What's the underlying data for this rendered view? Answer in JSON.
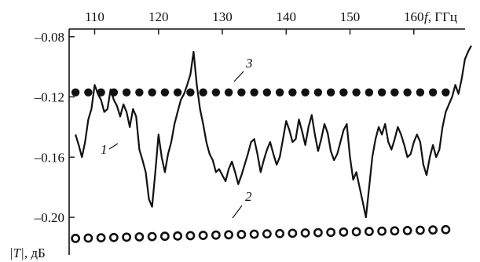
{
  "chart_data": {
    "type": "line",
    "x_axis": {
      "ticks": [
        110,
        120,
        130,
        140,
        150,
        160
      ],
      "tick_labels": [
        "110",
        "120",
        "130",
        "140",
        "150",
        "160"
      ],
      "label_var": "f",
      "label_unit": ", ГГц",
      "range": [
        106,
        170
      ],
      "position": "top"
    },
    "y_axis": {
      "ticks": [
        -0.08,
        -0.12,
        -0.16,
        -0.2
      ],
      "tick_labels": [
        "–0.08",
        "–0.12",
        "–0.16",
        "–0.20"
      ],
      "label_var": "|T|",
      "label_unit": ", дБ",
      "range": [
        -0.225,
        -0.065
      ]
    },
    "grid": false,
    "series": [
      {
        "label": "1",
        "style": "solid",
        "x": [
          107.0,
          107.5,
          108.0,
          108.5,
          109.0,
          109.5,
          110.0,
          110.5,
          111.0,
          111.5,
          112.0,
          112.5,
          113.0,
          113.5,
          114.0,
          114.5,
          115.0,
          115.5,
          116.0,
          116.5,
          117.0,
          117.5,
          118.0,
          118.5,
          119.0,
          119.5,
          120.0,
          120.5,
          121.0,
          121.5,
          122.0,
          122.5,
          123.0,
          123.5,
          124.0,
          124.5,
          125.0,
          125.5,
          126.0,
          126.5,
          127.0,
          127.5,
          128.0,
          128.5,
          129.0,
          129.5,
          130.0,
          130.5,
          131.0,
          131.5,
          132.0,
          132.5,
          133.0,
          133.5,
          134.0,
          134.5,
          135.0,
          135.5,
          136.0,
          136.5,
          137.0,
          137.5,
          138.0,
          138.5,
          139.0,
          139.5,
          140.0,
          140.5,
          141.0,
          141.5,
          142.0,
          142.5,
          143.0,
          143.5,
          144.0,
          144.5,
          145.0,
          145.5,
          146.0,
          146.5,
          147.0,
          147.5,
          148.0,
          148.5,
          149.0,
          149.5,
          150.0,
          150.5,
          151.0,
          151.5,
          152.0,
          152.5,
          153.0,
          153.5,
          154.0,
          154.5,
          155.0,
          155.5,
          156.0,
          156.5,
          157.0,
          157.5,
          158.0,
          158.5,
          159.0,
          159.5,
          160.0,
          160.5,
          161.0,
          161.5,
          162.0,
          162.5,
          163.0,
          163.5,
          164.0,
          164.5,
          165.0,
          165.5,
          166.0,
          166.5,
          167.0,
          167.5,
          168.0,
          168.5,
          169.0
        ],
        "y": [
          -0.145,
          -0.152,
          -0.16,
          -0.15,
          -0.135,
          -0.128,
          -0.112,
          -0.118,
          -0.122,
          -0.13,
          -0.128,
          -0.115,
          -0.122,
          -0.126,
          -0.133,
          -0.125,
          -0.13,
          -0.14,
          -0.128,
          -0.133,
          -0.155,
          -0.162,
          -0.17,
          -0.188,
          -0.193,
          -0.17,
          -0.145,
          -0.16,
          -0.17,
          -0.158,
          -0.15,
          -0.138,
          -0.13,
          -0.122,
          -0.118,
          -0.112,
          -0.105,
          -0.09,
          -0.112,
          -0.128,
          -0.138,
          -0.15,
          -0.158,
          -0.162,
          -0.17,
          -0.168,
          -0.172,
          -0.176,
          -0.168,
          -0.163,
          -0.17,
          -0.178,
          -0.172,
          -0.165,
          -0.158,
          -0.15,
          -0.148,
          -0.158,
          -0.17,
          -0.162,
          -0.155,
          -0.15,
          -0.158,
          -0.165,
          -0.16,
          -0.148,
          -0.136,
          -0.142,
          -0.15,
          -0.148,
          -0.135,
          -0.143,
          -0.152,
          -0.14,
          -0.132,
          -0.145,
          -0.156,
          -0.148,
          -0.138,
          -0.144,
          -0.156,
          -0.162,
          -0.158,
          -0.15,
          -0.142,
          -0.138,
          -0.16,
          -0.175,
          -0.17,
          -0.18,
          -0.19,
          -0.2,
          -0.18,
          -0.16,
          -0.148,
          -0.14,
          -0.145,
          -0.138,
          -0.15,
          -0.155,
          -0.148,
          -0.14,
          -0.145,
          -0.152,
          -0.16,
          -0.158,
          -0.15,
          -0.145,
          -0.15,
          -0.165,
          -0.172,
          -0.16,
          -0.152,
          -0.16,
          -0.155,
          -0.14,
          -0.13,
          -0.125,
          -0.12,
          -0.112,
          -0.118,
          -0.108,
          -0.095,
          -0.09,
          -0.086
        ]
      },
      {
        "label": "2",
        "style": "open-circles",
        "x": [
          107,
          109,
          111,
          113,
          115,
          117,
          119,
          121,
          123,
          125,
          127,
          129,
          131,
          133,
          135,
          137,
          139,
          141,
          143,
          145,
          147,
          149,
          151,
          153,
          155,
          157,
          159,
          161,
          163,
          165
        ],
        "y": [
          -0.214,
          -0.2138,
          -0.2136,
          -0.2134,
          -0.2132,
          -0.213,
          -0.2128,
          -0.2126,
          -0.2124,
          -0.2122,
          -0.212,
          -0.2118,
          -0.2116,
          -0.2114,
          -0.2112,
          -0.211,
          -0.2108,
          -0.2106,
          -0.2104,
          -0.2102,
          -0.21,
          -0.2098,
          -0.2096,
          -0.2094,
          -0.2092,
          -0.209,
          -0.2088,
          -0.2086,
          -0.2084,
          -0.2082
        ]
      },
      {
        "label": "3",
        "style": "filled-dots",
        "x": [
          107,
          109,
          111,
          113,
          115,
          117,
          119,
          121,
          123,
          125,
          127,
          129,
          131,
          133,
          135,
          137,
          139,
          141,
          143,
          145,
          147,
          149,
          151,
          153,
          155,
          157,
          159,
          161,
          163,
          165
        ],
        "y": [
          -0.117,
          -0.117,
          -0.117,
          -0.117,
          -0.117,
          -0.117,
          -0.117,
          -0.117,
          -0.117,
          -0.117,
          -0.117,
          -0.117,
          -0.117,
          -0.117,
          -0.117,
          -0.117,
          -0.117,
          -0.117,
          -0.117,
          -0.117,
          -0.117,
          -0.117,
          -0.117,
          -0.117,
          -0.117,
          -0.117,
          -0.117,
          -0.117,
          -0.117,
          -0.117
        ]
      }
    ],
    "annotations": [
      {
        "text": "1",
        "series": "1"
      },
      {
        "text": "2",
        "series": "2"
      },
      {
        "text": "3",
        "series": "3"
      }
    ]
  }
}
